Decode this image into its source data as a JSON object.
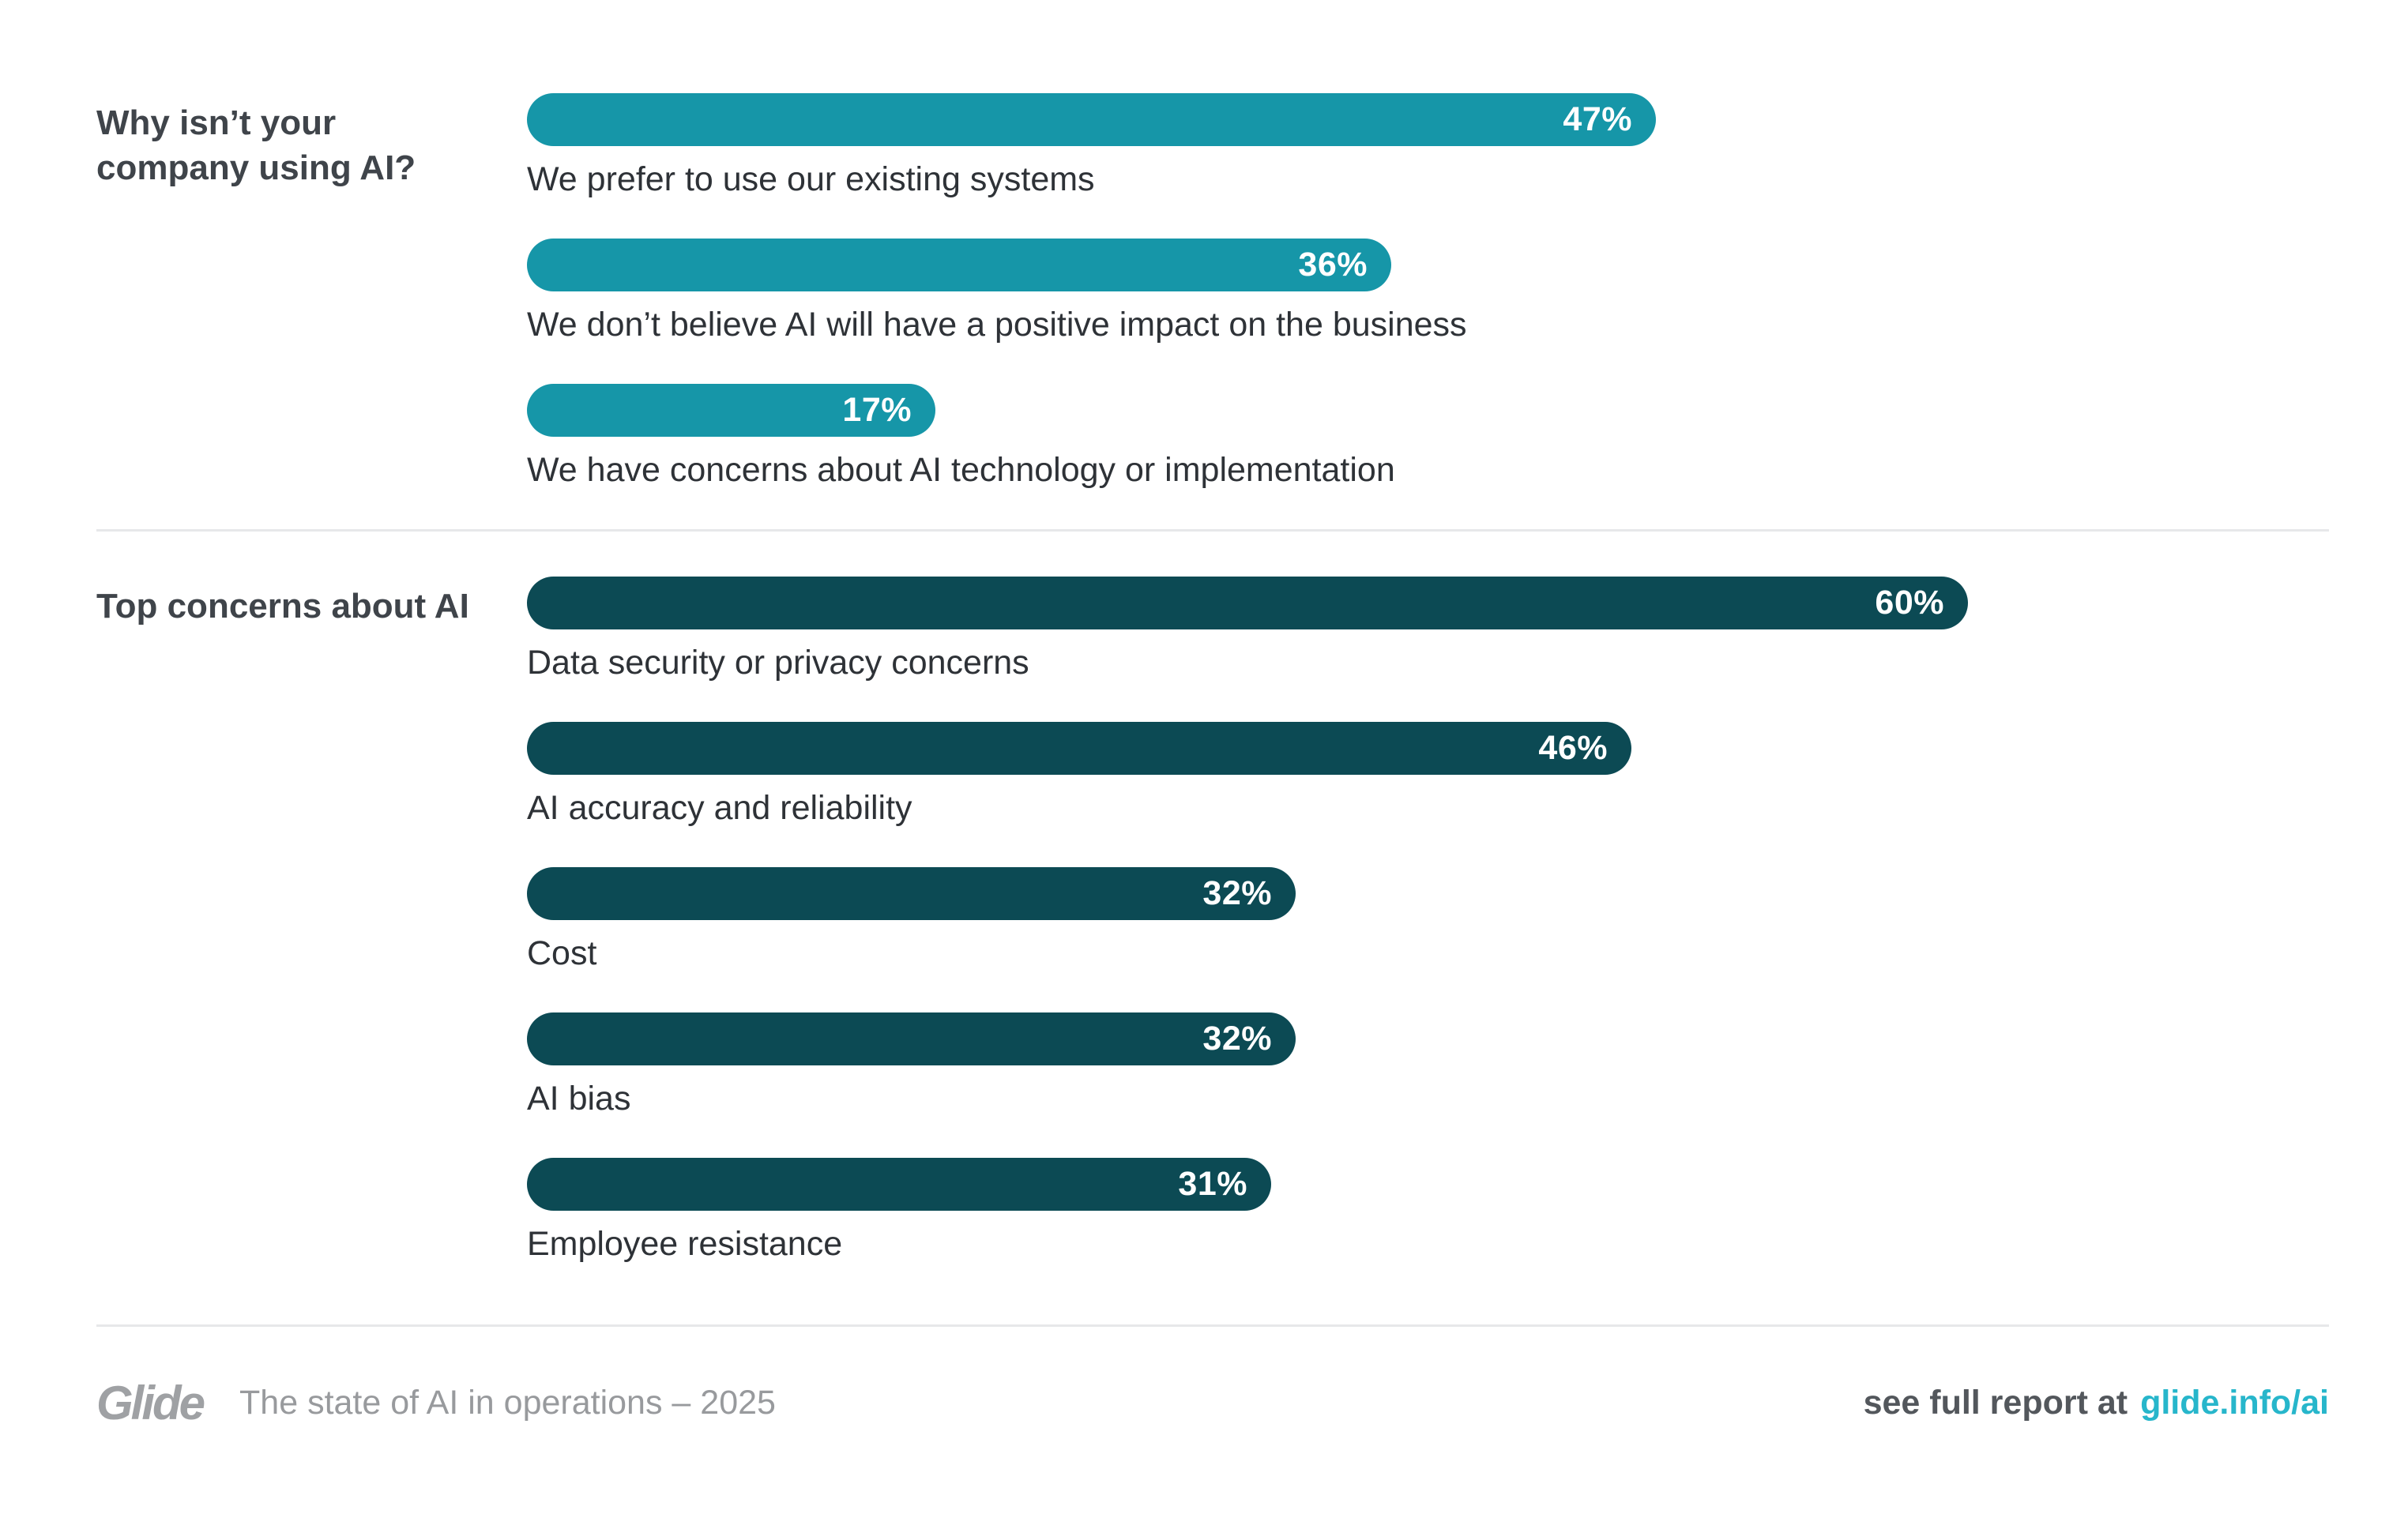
{
  "page": {
    "background": "#ffffff",
    "divider_color": "#E7E8EA"
  },
  "chart_data": [
    {
      "type": "bar",
      "orientation": "horizontal",
      "title": "Why isn’t your company using AI?",
      "title_lines": [
        "Why isn’t your",
        "company using AI?"
      ],
      "bar_color": "#1696A8",
      "categories": [
        "We prefer to use our existing systems",
        "We don’t believe AI will have a positive impact on the business",
        "We have concerns about AI technology or implementation"
      ],
      "values": [
        47,
        36,
        17
      ],
      "value_labels": [
        "47%",
        "36%",
        "17%"
      ],
      "value_label_position": "inside-end",
      "value_label_color": "#ffffff",
      "axis": "none",
      "grid": false,
      "legend": false
    },
    {
      "type": "bar",
      "orientation": "horizontal",
      "title": "Top concerns about AI",
      "title_lines": [
        "Top concerns about AI"
      ],
      "bar_color": "#0C4A54",
      "categories": [
        "Data security or privacy concerns",
        "AI accuracy and reliability",
        "Cost",
        "AI bias",
        "Employee resistance"
      ],
      "values": [
        60,
        46,
        32,
        32,
        31
      ],
      "value_labels": [
        "60%",
        "46%",
        "32%",
        "32%",
        "31%"
      ],
      "value_label_position": "inside-end",
      "value_label_color": "#ffffff",
      "axis": "none",
      "grid": false,
      "legend": false
    }
  ],
  "footer": {
    "logo": "Glide",
    "logo_color": "#9FA1A4",
    "tagline": "The state of AI in operations – 2025",
    "report_prefix": "see full report at",
    "report_link": "glide.info/ai",
    "link_color": "#27B6CB"
  }
}
